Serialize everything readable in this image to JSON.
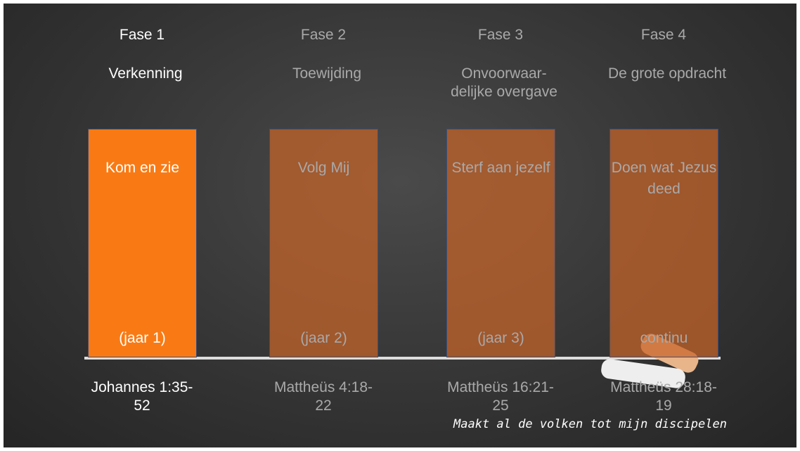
{
  "phases": [
    {
      "phase": "Fase 1",
      "name": "Verkenning",
      "box_title": "Kom en zie",
      "box_bottom": "(jaar 1)",
      "reference": "Johannes 1:35-52",
      "active": true
    },
    {
      "phase": "Fase 2",
      "name": "Toewijding",
      "box_title": "Volg Mij",
      "box_bottom": "(jaar 2)",
      "reference": "Mattheüs 4:18-22",
      "active": false
    },
    {
      "phase": "Fase 3",
      "name": "Onvoorwaar- delijke overgave",
      "box_title": "Sterf aan jezelf",
      "box_bottom": "(jaar 3)",
      "reference": "Mattheüs 16:21-25",
      "active": false
    },
    {
      "phase": "Fase 4",
      "name": "De grote opdracht",
      "box_title": "Doen wat Jezus deed",
      "box_bottom": "continu",
      "reference": "Mattheüs 28:18-19",
      "active": false
    }
  ],
  "note": "Maakt al de volken tot mijn discipelen"
}
